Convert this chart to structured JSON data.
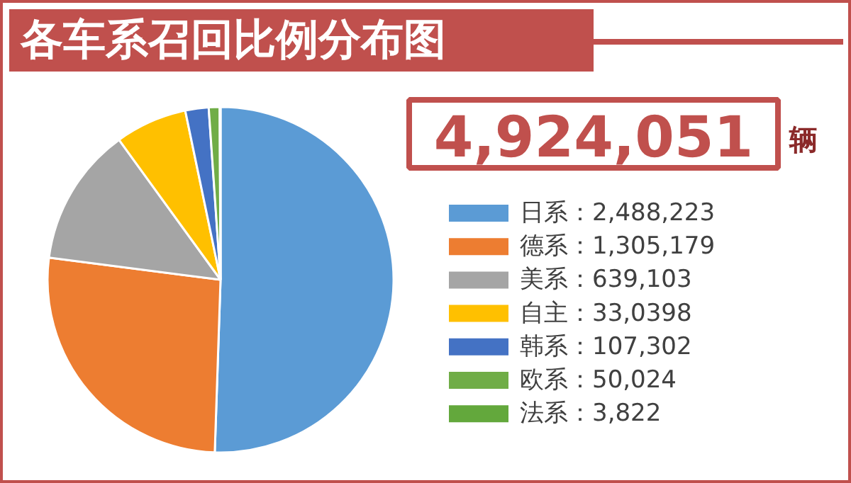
{
  "chart_data": {
    "type": "pie",
    "title": "各车系召回比例分布图",
    "categories": [
      "日系",
      "德系",
      "美系",
      "自主",
      "韩系",
      "欧系",
      "法系"
    ],
    "values": [
      2488223,
      1305179,
      639103,
      330398,
      107302,
      50024,
      3822
    ],
    "value_labels": [
      "2,488,223",
      "1,305,179",
      "639,103",
      "33,0398",
      "107,302",
      "50,024",
      "3,822"
    ],
    "colors": [
      "#5b9bd5",
      "#ed7d31",
      "#a5a5a5",
      "#ffc000",
      "#4472c4",
      "#70ad47",
      "#63a83c"
    ],
    "legend": "right",
    "annotations": [
      "4,924,051",
      "辆"
    ]
  }
}
